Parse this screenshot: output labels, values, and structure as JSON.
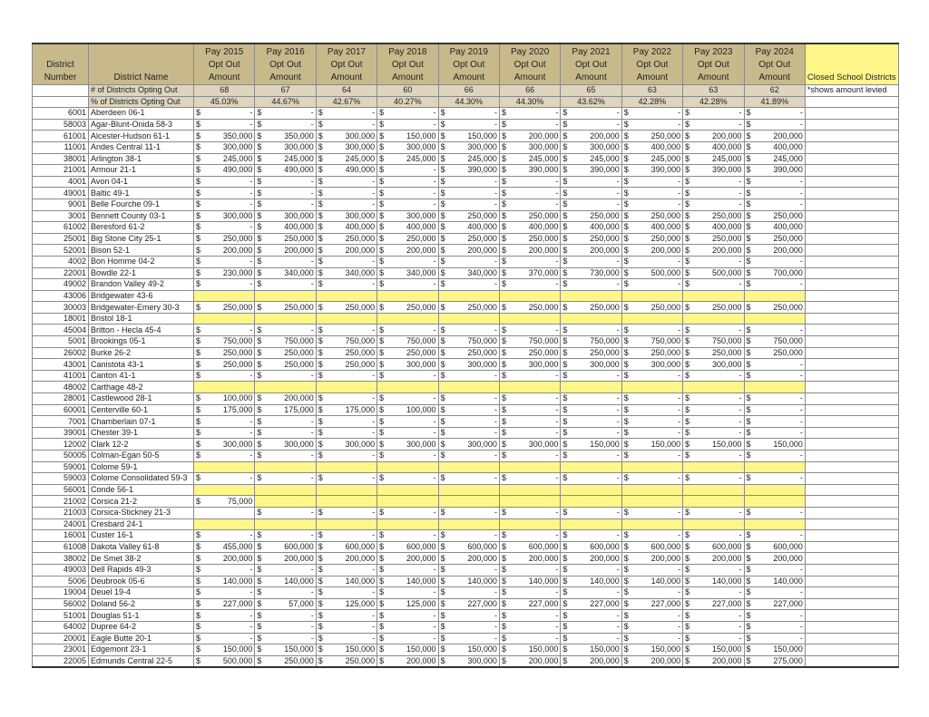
{
  "header": {
    "number": "District Number",
    "name": "District Name",
    "years": [
      "Pay 2015",
      "Pay 2016",
      "Pay 2017",
      "Pay 2018",
      "Pay 2019",
      "Pay 2020",
      "Pay 2021",
      "Pay 2022",
      "Pay 2023",
      "Pay 2024"
    ],
    "sub1": "Opt Out",
    "sub2": "Amount",
    "closed": "Closed School Districts"
  },
  "count_row": {
    "label": "# of Districts Opting Out",
    "values": [
      "68",
      "67",
      "64",
      "60",
      "66",
      "66",
      "65",
      "63",
      "63",
      "62"
    ],
    "note": "*shows amount levied"
  },
  "pct_row": {
    "label": "% of Districts Opting Out",
    "values": [
      "45.03%",
      "44.67%",
      "42.67%",
      "40.27%",
      "44.30%",
      "44.30%",
      "43.62%",
      "42.28%",
      "42.28%",
      "41.89%"
    ]
  },
  "currency": "$",
  "colors": {
    "header": "#c8b98b",
    "stat": "#ddd5bd",
    "closed": "#fff68a"
  },
  "rows": [
    {
      "number": "6001",
      "name": "Aberdeen 06-1",
      "amounts": [
        "-",
        "-",
        "-",
        "-",
        "-",
        "-",
        "-",
        "-",
        "-",
        "-"
      ]
    },
    {
      "number": "58003",
      "name": "Agar-Blunt-Onida 58-3",
      "amounts": [
        "-",
        "-",
        "-",
        "-",
        "-",
        "-",
        "-",
        "-",
        "-",
        "-"
      ]
    },
    {
      "number": "61001",
      "name": "Alcester-Hudson 61-1",
      "amounts": [
        "350,000",
        "350,000",
        "300,000",
        "150,000",
        "150,000",
        "200,000",
        "200,000",
        "250,000",
        "200,000",
        "200,000"
      ]
    },
    {
      "number": "11001",
      "name": "Andes Central 11-1",
      "amounts": [
        "300,000",
        "300,000",
        "300,000",
        "300,000",
        "300,000",
        "300,000",
        "300,000",
        "400,000",
        "400,000",
        "400,000"
      ]
    },
    {
      "number": "38001",
      "name": "Arlington 38-1",
      "amounts": [
        "245,000",
        "245,000",
        "245,000",
        "245,000",
        "245,000",
        "245,000",
        "245,000",
        "245,000",
        "245,000",
        "245,000"
      ]
    },
    {
      "number": "21001",
      "name": "Armour 21-1",
      "amounts": [
        "490,000",
        "490,000",
        "490,000",
        "-",
        "390,000",
        "390,000",
        "390,000",
        "390,000",
        "390,000",
        "390,000"
      ]
    },
    {
      "number": "4001",
      "name": "Avon 04-1",
      "amounts": [
        "-",
        "-",
        "-",
        "-",
        "-",
        "-",
        "-",
        "-",
        "-",
        "-"
      ]
    },
    {
      "number": "49001",
      "name": "Baltic 49-1",
      "amounts": [
        "-",
        "-",
        "-",
        "-",
        "-",
        "-",
        "-",
        "-",
        "-",
        "-"
      ]
    },
    {
      "number": "9001",
      "name": "Belle Fourche 09-1",
      "amounts": [
        "-",
        "-",
        "-",
        "-",
        "-",
        "-",
        "-",
        "-",
        "-",
        "-"
      ]
    },
    {
      "number": "3001",
      "name": "Bennett County 03-1",
      "amounts": [
        "300,000",
        "300,000",
        "300,000",
        "300,000",
        "250,000",
        "250,000",
        "250,000",
        "250,000",
        "250,000",
        "250,000"
      ]
    },
    {
      "number": "61002",
      "name": "Beresford 61-2",
      "amounts": [
        "-",
        "400,000",
        "400,000",
        "400,000",
        "400,000",
        "400,000",
        "400,000",
        "400,000",
        "400,000",
        "400,000"
      ]
    },
    {
      "number": "25001",
      "name": "Big Stone City 25-1",
      "amounts": [
        "250,000",
        "250,000",
        "250,000",
        "250,000",
        "250,000",
        "250,000",
        "250,000",
        "250,000",
        "250,000",
        "250,000"
      ]
    },
    {
      "number": "52001",
      "name": "Bison 52-1",
      "amounts": [
        "200,000",
        "200,000",
        "200,000",
        "200,000",
        "200,000",
        "200,000",
        "200,000",
        "200,000",
        "200,000",
        "200,000"
      ]
    },
    {
      "number": "4002",
      "name": "Bon Homme 04-2",
      "amounts": [
        "-",
        "-",
        "-",
        "-",
        "-",
        "-",
        "-",
        "-",
        "-",
        "-"
      ]
    },
    {
      "number": "22001",
      "name": "Bowdle 22-1",
      "amounts": [
        "230,000",
        "340,000",
        "340,000",
        "340,000",
        "340,000",
        "370,000",
        "730,000",
        "500,000",
        "500,000",
        "700,000"
      ]
    },
    {
      "number": "49002",
      "name": "Brandon Valley 49-2",
      "amounts": [
        "-",
        "-",
        "-",
        "-",
        "-",
        "-",
        "-",
        "-",
        "-",
        "-"
      ]
    },
    {
      "number": "43006",
      "name": "Bridgewater 43-6",
      "amounts": [
        null,
        null,
        null,
        null,
        null,
        null,
        null,
        null,
        null,
        null
      ]
    },
    {
      "number": "30003",
      "name": "Bridgewater-Emery 30-3",
      "amounts": [
        "250,000",
        "250,000",
        "250,000",
        "250,000",
        "250,000",
        "250,000",
        "250,000",
        "250,000",
        "250,000",
        "250,000"
      ]
    },
    {
      "number": "18001",
      "name": "Bristol 18-1",
      "amounts": [
        null,
        null,
        null,
        null,
        null,
        null,
        null,
        null,
        null,
        null
      ]
    },
    {
      "number": "45004",
      "name": "Britton - Hecla 45-4",
      "amounts": [
        "-",
        "-",
        "-",
        "-",
        "-",
        "-",
        "-",
        "-",
        "-",
        "-"
      ]
    },
    {
      "number": "5001",
      "name": "Brookings 05-1",
      "amounts": [
        "750,000",
        "750,000",
        "750,000",
        "750,000",
        "750,000",
        "750,000",
        "750,000",
        "750,000",
        "750,000",
        "750,000"
      ]
    },
    {
      "number": "26002",
      "name": "Burke 26-2",
      "amounts": [
        "250,000",
        "250,000",
        "250,000",
        "250,000",
        "250,000",
        "250,000",
        "250,000",
        "250,000",
        "250,000",
        "250,000"
      ]
    },
    {
      "number": "43001",
      "name": "Canistota 43-1",
      "amounts": [
        "250,000",
        "250,000",
        "250,000",
        "300,000",
        "300,000",
        "300,000",
        "300,000",
        "300,000",
        "300,000",
        "-"
      ]
    },
    {
      "number": "41001",
      "name": "Canton 41-1",
      "amounts": [
        "-",
        "-",
        "-",
        "-",
        "-",
        "-",
        "-",
        "-",
        "-",
        "-"
      ]
    },
    {
      "number": "48002",
      "name": "Carthage 48-2",
      "amounts": [
        null,
        null,
        null,
        null,
        null,
        null,
        null,
        null,
        null,
        null
      ]
    },
    {
      "number": "28001",
      "name": "Castlewood 28-1",
      "amounts": [
        "100,000",
        "200,000",
        "-",
        "-",
        "-",
        "-",
        "-",
        "-",
        "-",
        "-"
      ]
    },
    {
      "number": "60001",
      "name": "Centerville 60-1",
      "amounts": [
        "175,000",
        "175,000",
        "175,000",
        "100,000",
        "-",
        "-",
        "-",
        "-",
        "-",
        "-"
      ]
    },
    {
      "number": "7001",
      "name": "Chamberlain 07-1",
      "amounts": [
        "-",
        "-",
        "-",
        "-",
        "-",
        "-",
        "-",
        "-",
        "-",
        "-"
      ]
    },
    {
      "number": "39001",
      "name": "Chester 39-1",
      "amounts": [
        "-",
        "-",
        "-",
        "-",
        "-",
        "-",
        "-",
        "-",
        "-",
        "-"
      ]
    },
    {
      "number": "12002",
      "name": "Clark 12-2",
      "amounts": [
        "300,000",
        "300,000",
        "300,000",
        "300,000",
        "300,000",
        "300,000",
        "150,000",
        "150,000",
        "150,000",
        "150,000"
      ]
    },
    {
      "number": "50005",
      "name": "Colman-Egan 50-5",
      "amounts": [
        "-",
        "-",
        "-",
        "-",
        "-",
        "-",
        "-",
        "-",
        "-",
        "-"
      ]
    },
    {
      "number": "59001",
      "name": "Colome 59-1",
      "amounts": [
        null,
        null,
        null,
        null,
        null,
        null,
        null,
        null,
        null,
        null
      ]
    },
    {
      "number": "59003",
      "name": "Colome Consolidated 59-3",
      "amounts": [
        "-",
        "-",
        "-",
        "-",
        "-",
        "-",
        "-",
        "-",
        "-",
        "-"
      ]
    },
    {
      "number": "56001",
      "name": "Conde 56-1",
      "amounts": [
        null,
        null,
        null,
        null,
        null,
        null,
        null,
        null,
        null,
        null
      ]
    },
    {
      "number": "21002",
      "name": "Corsica 21-2",
      "amounts": [
        "75,000",
        null,
        null,
        null,
        null,
        null,
        null,
        null,
        null,
        null
      ]
    },
    {
      "number": "21003",
      "name": "Corsica-Stickney 21-3",
      "amounts": [
        "",
        "-",
        "-",
        "-",
        "-",
        "-",
        "-",
        "-",
        "-",
        "-"
      ]
    },
    {
      "number": "24001",
      "name": "Cresbard 24-1",
      "amounts": [
        null,
        null,
        null,
        null,
        null,
        null,
        null,
        null,
        null,
        null
      ]
    },
    {
      "number": "16001",
      "name": "Custer 16-1",
      "amounts": [
        "-",
        "-",
        "-",
        "-",
        "-",
        "-",
        "-",
        "-",
        "-",
        "-"
      ]
    },
    {
      "number": "61008",
      "name": "Dakota Valley 61-8",
      "amounts": [
        "455,000",
        "600,000",
        "600,000",
        "600,000",
        "600,000",
        "600,000",
        "600,000",
        "600,000",
        "600,000",
        "600,000"
      ]
    },
    {
      "number": "38002",
      "name": "De Smet 38-2",
      "amounts": [
        "200,000",
        "200,000",
        "200,000",
        "200,000",
        "200,000",
        "200,000",
        "200,000",
        "200,000",
        "200,000",
        "200,000"
      ]
    },
    {
      "number": "49003",
      "name": "Dell Rapids 49-3",
      "amounts": [
        "-",
        "-",
        "-",
        "-",
        "-",
        "-",
        "-",
        "-",
        "-",
        "-"
      ]
    },
    {
      "number": "5006",
      "name": "Deubrook 05-6",
      "amounts": [
        "140,000",
        "140,000",
        "140,000",
        "140,000",
        "140,000",
        "140,000",
        "140,000",
        "140,000",
        "140,000",
        "140,000"
      ]
    },
    {
      "number": "19004",
      "name": "Deuel 19-4",
      "amounts": [
        "-",
        "-",
        "-",
        "-",
        "-",
        "-",
        "-",
        "-",
        "-",
        "-"
      ]
    },
    {
      "number": "56002",
      "name": "Doland 56-2",
      "amounts": [
        "227,000",
        "57,000",
        "125,000",
        "125,000",
        "227,000",
        "227,000",
        "227,000",
        "227,000",
        "227,000",
        "227,000"
      ]
    },
    {
      "number": "51001",
      "name": "Douglas 51-1",
      "amounts": [
        "-",
        "-",
        "-",
        "-",
        "-",
        "-",
        "-",
        "-",
        "-",
        "-"
      ]
    },
    {
      "number": "64002",
      "name": "Dupree 64-2",
      "amounts": [
        "-",
        "-",
        "-",
        "-",
        "-",
        "-",
        "-",
        "-",
        "-",
        "-"
      ]
    },
    {
      "number": "20001",
      "name": "Eagle Butte 20-1",
      "amounts": [
        "-",
        "-",
        "-",
        "-",
        "-",
        "-",
        "-",
        "-",
        "-",
        "-"
      ]
    },
    {
      "number": "23001",
      "name": "Edgemont 23-1",
      "amounts": [
        "150,000",
        "150,000",
        "150,000",
        "150,000",
        "150,000",
        "150,000",
        "150,000",
        "150,000",
        "150,000",
        "150,000"
      ]
    },
    {
      "number": "22005",
      "name": "Edmunds Central 22-5",
      "amounts": [
        "500,000",
        "250,000",
        "250,000",
        "200,000",
        "300,000",
        "200,000",
        "200,000",
        "200,000",
        "200,000",
        "275,000"
      ]
    }
  ]
}
